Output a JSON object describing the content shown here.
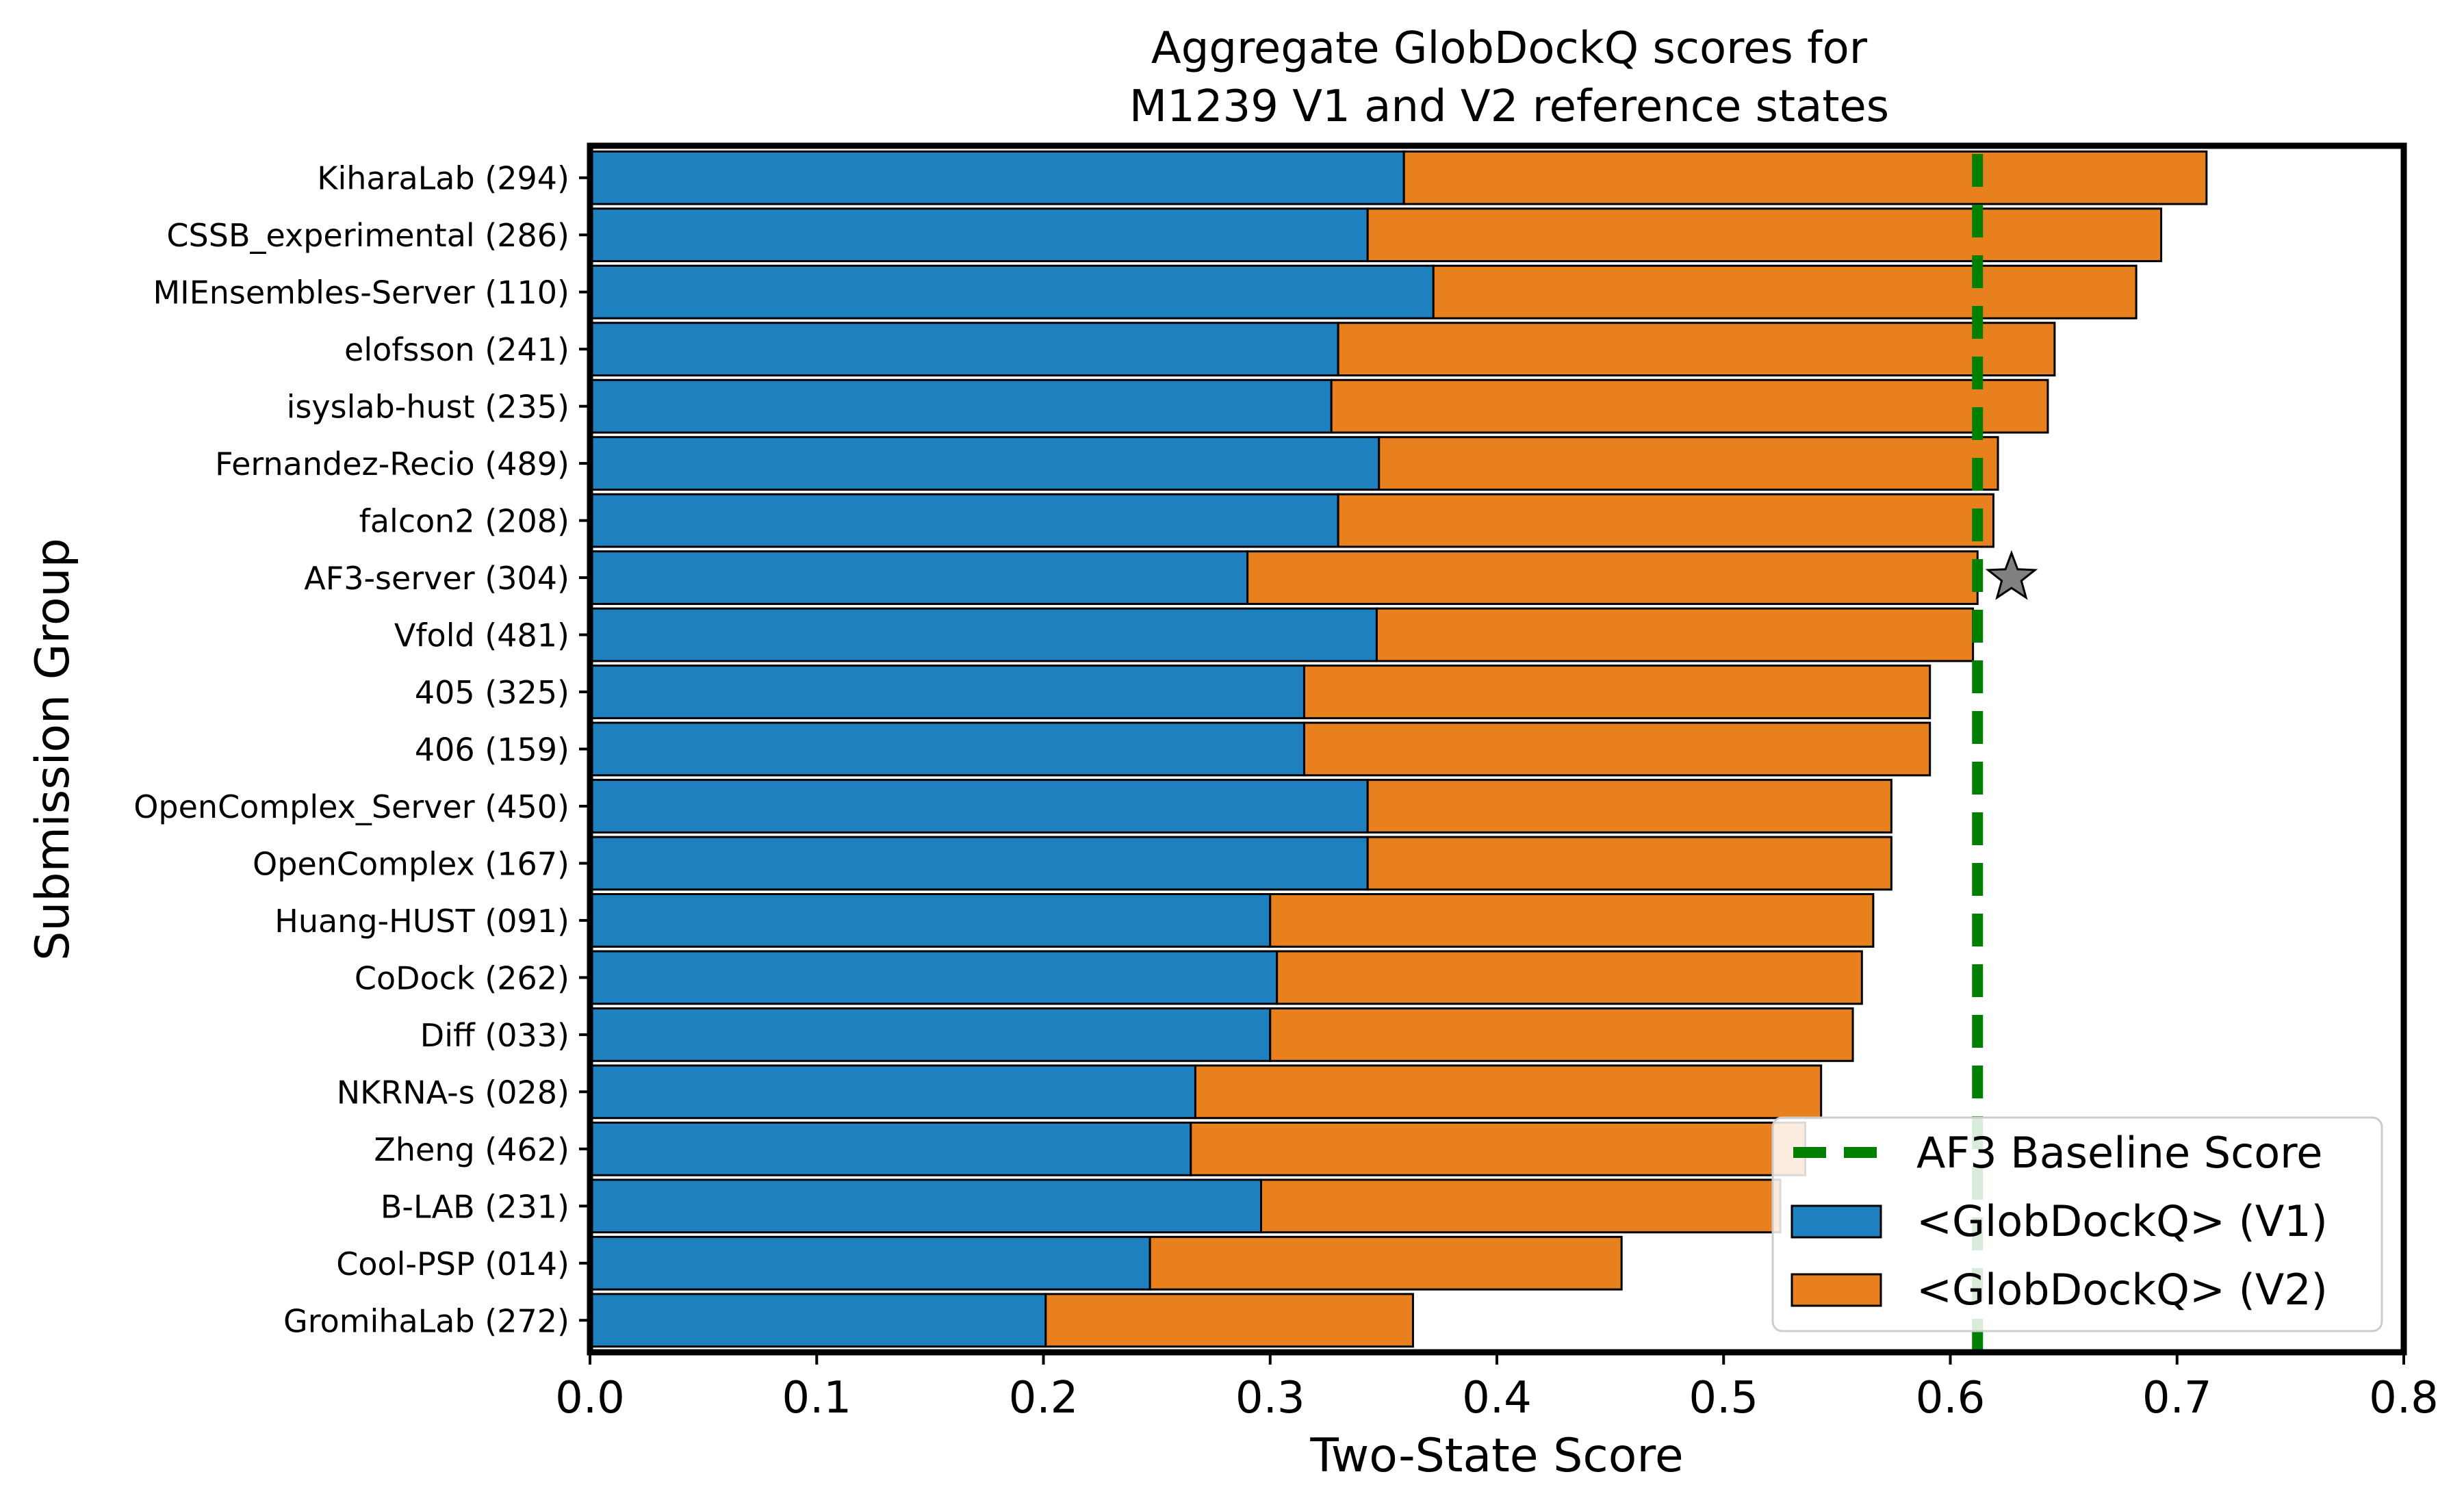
{
  "chart_data": {
    "type": "bar",
    "orientation": "horizontal",
    "stacked": true,
    "title": [
      "Aggregate GlobDockQ scores for",
      "M1239 V1 and V2 reference states"
    ],
    "xlabel": "Two-State Score",
    "ylabel": "Submission Group",
    "xlim": [
      0.0,
      0.8
    ],
    "xticks": [
      "0.0",
      "0.1",
      "0.2",
      "0.3",
      "0.4",
      "0.5",
      "0.6",
      "0.7",
      "0.8"
    ],
    "categories": [
      "KiharaLab (294)",
      "CSSB_experimental (286)",
      "MIEnsembles-Server (110)",
      "elofsson (241)",
      "isyslab-hust (235)",
      "Fernandez-Recio (489)",
      "falcon2 (208)",
      "AF3-server (304)",
      "Vfold (481)",
      "405 (325)",
      "406 (159)",
      "OpenComplex_Server (450)",
      "OpenComplex (167)",
      "Huang-HUST (091)",
      "CoDock (262)",
      "Diff (033)",
      "NKRNA-s (028)",
      "Zheng (462)",
      "B-LAB (231)",
      "Cool-PSP (014)",
      "GromihaLab (272)"
    ],
    "series": [
      {
        "name": "<GlobDockQ> (V1)",
        "color": "#1f80c0",
        "values": [
          0.359,
          0.343,
          0.372,
          0.33,
          0.327,
          0.348,
          0.33,
          0.29,
          0.347,
          0.315,
          0.315,
          0.343,
          0.343,
          0.3,
          0.303,
          0.3,
          0.267,
          0.265,
          0.296,
          0.247,
          0.201
        ]
      },
      {
        "name": "<GlobDockQ> (V2)",
        "color": "#e8801e",
        "values": [
          0.354,
          0.35,
          0.31,
          0.316,
          0.316,
          0.273,
          0.289,
          0.322,
          0.263,
          0.276,
          0.276,
          0.231,
          0.231,
          0.266,
          0.258,
          0.257,
          0.276,
          0.271,
          0.229,
          0.208,
          0.162
        ]
      }
    ],
    "baseline": {
      "name": "AF3 Baseline Score",
      "value": 0.612,
      "color": "#008000",
      "style": "dashed"
    },
    "marker": {
      "category": "AF3-server (304)",
      "value": 0.627,
      "shape": "star",
      "color": "#808080"
    },
    "legend_position": "lower-right",
    "grid": false
  }
}
